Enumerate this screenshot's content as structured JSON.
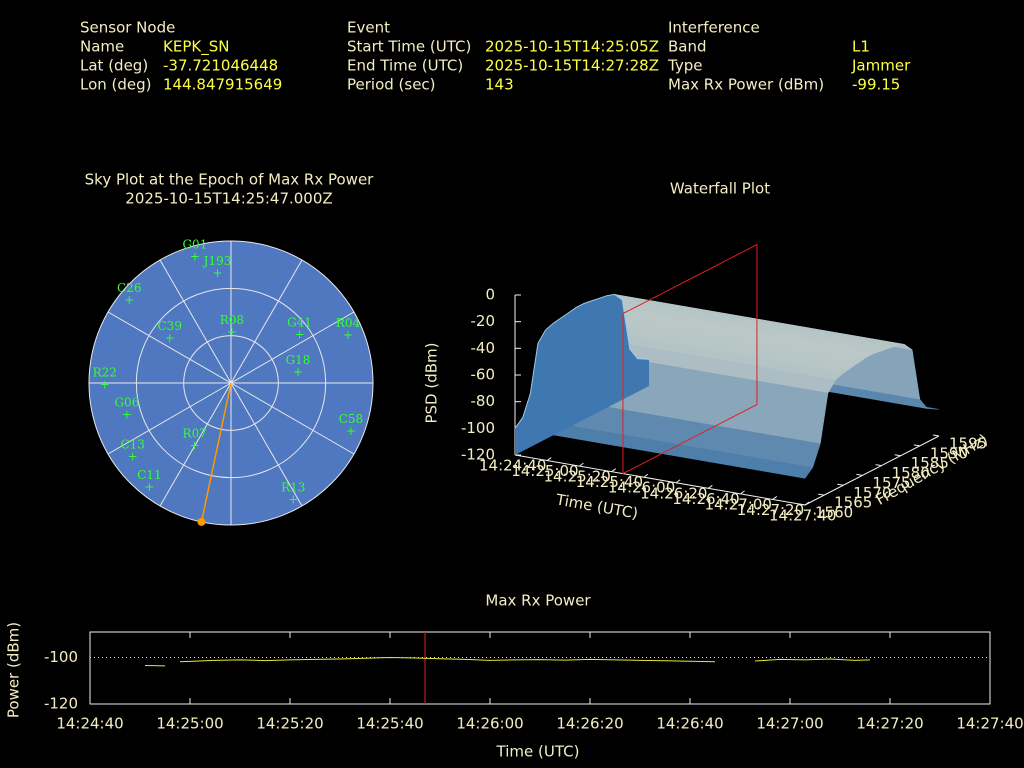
{
  "header": {
    "columns": [
      {
        "title": "Sensor Node",
        "rows": [
          {
            "label": "Name",
            "value": "KEPK_SN"
          },
          {
            "label": "Lat (deg)",
            "value": -37.721046448
          },
          {
            "label": "Lon (deg)",
            "value": 144.847915649
          }
        ]
      },
      {
        "title": "Event",
        "rows": [
          {
            "label": "Start Time (UTC)",
            "value": "2025-10-15T14:25:05Z"
          },
          {
            "label": "End Time (UTC)",
            "value": "2025-10-15T14:27:28Z"
          },
          {
            "label": "Period (sec)",
            "value": 143
          }
        ]
      },
      {
        "title": "Interference",
        "rows": [
          {
            "label": "Band",
            "value": "L1"
          },
          {
            "label": "Type",
            "value": "Jammer"
          },
          {
            "label": "Max Rx Power (dBm)",
            "value": -99.15
          }
        ]
      }
    ]
  },
  "chart_data": [
    {
      "type": "polar",
      "title": "Sky Plot at the Epoch of Max Rx Power",
      "subtitle": "2025-10-15T14:25:47.000Z",
      "categories": [
        "G01",
        "J193",
        "C26",
        "R08",
        "G41",
        "R04",
        "R22",
        "G18",
        "G06",
        "C58",
        "R07",
        "R13",
        "C11",
        "C13",
        "C39"
      ],
      "azimuth": [
        344,
        353,
        309,
        1,
        55,
        68,
        269,
        81,
        253,
        112,
        210,
        152,
        218,
        233,
        306
      ],
      "elevation": [
        7,
        20,
        7,
        58,
        37,
        10,
        10,
        47,
        21,
        8,
        44,
        6,
        6,
        12,
        42
      ],
      "rings": [
        0,
        30,
        60
      ],
      "azimuth_grid": [
        0,
        30,
        60,
        90,
        120,
        150,
        180,
        210,
        240,
        270,
        300,
        330
      ],
      "max_power_azimuth": 192,
      "color": "#33ff33",
      "max_power_color": "#ff9900"
    },
    {
      "type": "waterfall",
      "title": "Waterfall Plot",
      "xlabel": "Time (UTC)",
      "ylabel": "Frequency (MHz)",
      "zlabel": "PSD (dBm)",
      "xlim": [
        "14:24:40",
        "14:27:40"
      ],
      "xticks": [
        "14:24:40",
        "14:25:00",
        "14:25:20",
        "14:25:40",
        "14:26:00",
        "14:26:20",
        "14:26:40",
        "14:27:00",
        "14:27:20",
        "14:27:40"
      ],
      "ylim": [
        1560,
        1595
      ],
      "yticks": [
        1560,
        1565,
        1570,
        1575,
        1580,
        1585,
        1590,
        1595
      ],
      "zlim": [
        -120,
        0
      ],
      "zticks": [
        0,
        -20,
        -40,
        -60,
        -80,
        -100,
        -120
      ],
      "frequencies": [
        1560,
        1562,
        1564,
        1566,
        1568,
        1570,
        1572,
        1574,
        1576,
        1578,
        1580,
        1582,
        1584,
        1586,
        1588,
        1590,
        1592,
        1595
      ],
      "values": [
        -100,
        -95,
        -80,
        -45,
        -38,
        -36,
        -35,
        -34,
        -33,
        -33,
        -34,
        -35,
        -36,
        -38,
        -45,
        -85,
        -95,
        -100
      ],
      "marker_x": "14:25:47",
      "marker_color": "#dd2222"
    },
    {
      "type": "line",
      "title": "Max Rx Power",
      "xlabel": "Time (UTC)",
      "ylabel": "Power (dBm)",
      "xlim": [
        "14:24:40",
        "14:27:40"
      ],
      "xticks": [
        "14:24:40",
        "14:25:00",
        "14:25:20",
        "14:25:40",
        "14:26:00",
        "14:26:20",
        "14:26:40",
        "14:27:00",
        "14:27:20",
        "14:27:40"
      ],
      "ylim": [
        -120,
        -89
      ],
      "yticks": [
        -100,
        -120
      ],
      "grid": true,
      "x": [
        "14:24:51",
        "14:24:55",
        "14:24:57",
        "14:24:58",
        "14:25:05",
        "14:25:10",
        "14:25:15",
        "14:25:20",
        "14:25:25",
        "14:25:30",
        "14:25:35",
        "14:25:40",
        "14:25:45",
        "14:25:50",
        "14:25:55",
        "14:26:00",
        "14:26:05",
        "14:26:10",
        "14:26:15",
        "14:26:20",
        "14:26:25",
        "14:26:30",
        "14:26:35",
        "14:26:40",
        "14:26:45",
        "14:26:48",
        "14:26:53",
        "14:26:58",
        "14:27:03",
        "14:27:08",
        "14:27:13",
        "14:27:16"
      ],
      "series": [
        {
          "color": "#e8e840",
          "values": [
            -103.4,
            -103.6,
            null,
            -101.8,
            -101.2,
            -101,
            -101.3,
            -101,
            -100.8,
            -100.6,
            -100.3,
            -100,
            -100.2,
            -100.5,
            -100.8,
            -101.2,
            -101,
            -100.9,
            -101.1,
            -100.8,
            -101,
            -101.2,
            -101.4,
            -101.6,
            -101.8,
            null,
            -101.5,
            -100.8,
            -101,
            -100.6,
            -101.2,
            -101
          ]
        }
      ],
      "marker_x": "14:25:47",
      "marker_color": "#dd2222"
    }
  ]
}
